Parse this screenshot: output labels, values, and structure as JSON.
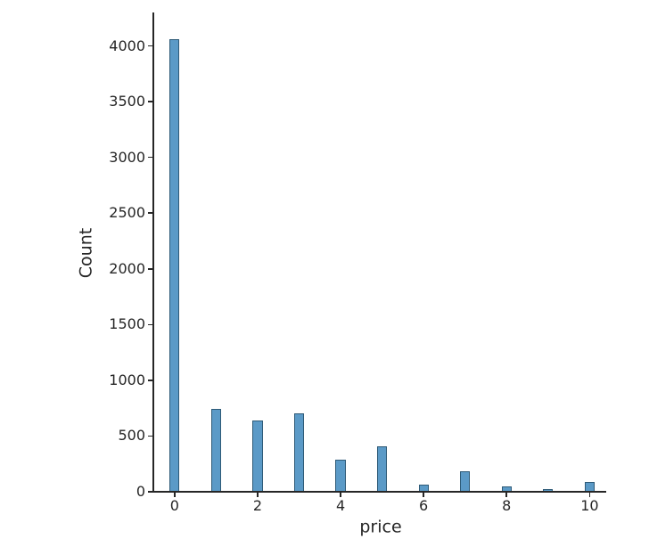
{
  "chart_data": {
    "type": "bar",
    "subtype": "histogram",
    "title": "",
    "xlabel": "price",
    "ylabel": "Count",
    "categories": [
      0,
      1,
      2,
      3,
      4,
      5,
      6,
      7,
      8,
      9,
      10
    ],
    "values": [
      4060,
      740,
      640,
      700,
      285,
      405,
      60,
      180,
      50,
      20,
      85
    ],
    "bin_width": 0.24,
    "xtick_values": [
      0,
      2,
      4,
      6,
      8,
      10
    ],
    "xtick_labels": [
      "0",
      "2",
      "4",
      "6",
      "8",
      "10"
    ],
    "ytick_values": [
      0,
      500,
      1000,
      1500,
      2000,
      2500,
      3000,
      3500,
      4000
    ],
    "ytick_labels": [
      "0",
      "500",
      "1000",
      "1500",
      "2000",
      "2500",
      "3000",
      "3500",
      "4000"
    ],
    "xlim": [
      -0.49,
      10.4
    ],
    "ylim": [
      0,
      4300
    ],
    "grid": false,
    "legend": null,
    "colors": {
      "bar_fill": "#5b9ac7",
      "bar_edge": "#2e5a77",
      "axis": "#262626",
      "text": "#262626",
      "background": "#ffffff"
    }
  }
}
